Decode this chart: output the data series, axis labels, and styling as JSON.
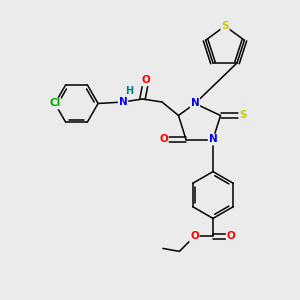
{
  "bg_color": "#ebebeb",
  "atom_colors": {
    "N": "#0000ff",
    "O": "#ff0000",
    "S_thioxo": "#cccc00",
    "S_thiophene": "#cccc00",
    "Cl": "#00aa00",
    "H": "#008080",
    "C": "#000000"
  },
  "bond_color": "#000000"
}
